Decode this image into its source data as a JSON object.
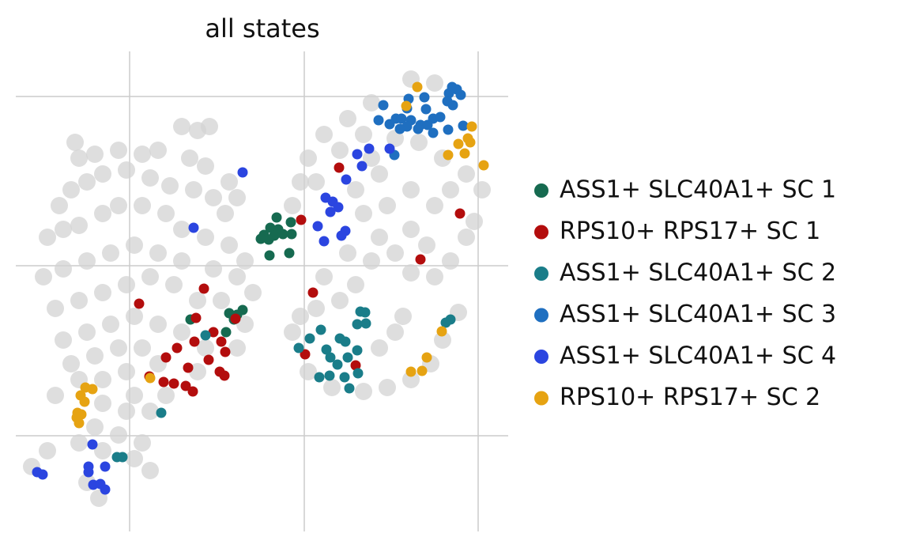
{
  "chart_data": {
    "type": "scatter",
    "title": "all states",
    "xlim": [
      2,
      64.3
    ],
    "ylim": [
      2.8,
      63.5
    ],
    "xticks": [
      16.4,
      38.5,
      60.5
    ],
    "yticks": [
      14.9,
      36.4,
      57.8
    ],
    "grid": true,
    "legend": "right",
    "background": {
      "color": "#d3d3d3",
      "x": [
        9.5,
        10,
        12,
        15,
        18,
        20,
        23,
        25,
        26.5,
        24,
        26,
        29,
        30,
        28.5,
        7.5,
        9,
        11,
        13,
        16,
        19,
        21.5,
        24.5,
        27,
        6,
        8,
        10,
        13,
        15,
        18,
        21,
        23,
        26,
        29,
        31,
        5.5,
        8,
        11,
        14,
        17,
        20,
        23,
        27,
        30,
        32,
        7,
        10,
        13,
        16,
        19,
        22,
        25,
        28,
        31,
        8,
        11,
        14,
        17,
        20,
        23,
        26,
        30,
        9,
        12,
        15,
        18,
        20,
        25,
        7,
        10,
        13,
        16,
        17,
        21,
        13,
        16,
        19,
        12,
        15,
        18,
        10,
        13,
        17,
        19,
        11,
        12.5,
        4,
        6,
        52,
        55,
        47,
        44,
        41,
        39,
        38,
        37,
        40,
        43,
        46,
        50,
        53,
        56,
        59,
        61,
        60,
        59,
        57,
        55,
        52,
        50,
        48,
        47,
        45,
        43,
        40,
        38,
        37,
        39,
        42,
        46,
        49,
        52,
        54.5,
        56,
        58,
        50,
        48,
        51,
        46,
        49,
        52,
        55,
        52,
        54,
        45,
        48,
        57,
        44,
        41,
        47
      ],
      "y": [
        52,
        50,
        50.5,
        51,
        50.5,
        51,
        54,
        53.5,
        54,
        50,
        49,
        47,
        45,
        43,
        44,
        46,
        47,
        48,
        48.5,
        47.5,
        46.5,
        46,
        45,
        40,
        41,
        41.5,
        43,
        44,
        44,
        43,
        41,
        40,
        39,
        37,
        35,
        36,
        37,
        38,
        39,
        38,
        37,
        36,
        35,
        33,
        31,
        32,
        33,
        34,
        35,
        34,
        32,
        32,
        29,
        27,
        28,
        29,
        30,
        29,
        28,
        26,
        26,
        24,
        25,
        26,
        26,
        24,
        23,
        20,
        22,
        22,
        23,
        20,
        20,
        19,
        18,
        18,
        16,
        15,
        14,
        14,
        13,
        12,
        10.5,
        9,
        7,
        11,
        13,
        60,
        59.5,
        57,
        55,
        53,
        50,
        47,
        44,
        47,
        51,
        53,
        52.5,
        52,
        50,
        48,
        46,
        42,
        40,
        37,
        35,
        35.5,
        38,
        40,
        37,
        34,
        32,
        31,
        30,
        28,
        23,
        21,
        20.5,
        21,
        22,
        24,
        27,
        30.5,
        28,
        26,
        30,
        43,
        44,
        46,
        44,
        41,
        39,
        46,
        48,
        46,
        38,
        35,
        50
      ]
    },
    "series": [
      {
        "name": "ASS1+ SLC40A1+ SC 1",
        "color": "#166a50",
        "x": [
          35,
          36.8,
          34.2,
          35.2,
          33.4,
          34.7,
          35.8,
          36.9,
          33,
          34,
          34.1,
          36.6,
          29,
          30,
          30.7,
          29.6,
          28.6,
          24.1
        ],
        "y": [
          42.5,
          41.9,
          41.2,
          41,
          40.3,
          40.2,
          40.4,
          40.4,
          39.8,
          39.7,
          37.7,
          38,
          30.4,
          30.2,
          30.8,
          29.6,
          28,
          29.6
        ]
      },
      {
        "name": "RPS10+ RPS17+ SC 1",
        "color": "#b30d0d",
        "x": [
          42.9,
          38.1,
          58.2,
          53.2,
          39.6,
          25.8,
          17.6,
          24.8,
          29.8,
          27,
          24.6,
          28,
          22.4,
          28.5,
          21,
          26.4,
          23.8,
          27.8,
          18.9,
          28.4,
          20.7,
          22,
          23.5,
          24.4,
          45,
          38.6
        ],
        "y": [
          48.8,
          42.2,
          43,
          37.2,
          33,
          33.5,
          31.6,
          29.8,
          29.7,
          28,
          26.8,
          26.8,
          26,
          25.5,
          24.8,
          24.5,
          23.5,
          23,
          22.4,
          22.5,
          21.7,
          21.5,
          21.2,
          20.5,
          23.8,
          25.2
        ]
      },
      {
        "name": "ASS1+ SLC40A1+ SC 2",
        "color": "#1a7d89",
        "x": [
          45.6,
          46.2,
          45.2,
          46.3,
          40.6,
          39.2,
          43,
          43.7,
          37.8,
          41.3,
          45.2,
          41.8,
          44,
          42.7,
          40.4,
          41.7,
          43.6,
          45.3,
          44.2,
          57,
          56.4,
          26,
          20.4,
          14.8,
          15.5
        ],
        "y": [
          30.6,
          30.5,
          29,
          29.1,
          28.3,
          27.2,
          27.2,
          26.8,
          26,
          25.8,
          25.7,
          24.8,
          24.8,
          23.9,
          22.3,
          22.5,
          22.3,
          22.8,
          20.9,
          29.6,
          29.2,
          27.6,
          17.8,
          12.2,
          12.2
        ]
      },
      {
        "name": "ASS1+ SLC40A1+ SC 3",
        "color": "#1f6fc0",
        "x": [
          57.2,
          57.8,
          56.8,
          58.3,
          48.5,
          51.7,
          53.7,
          56.6,
          57.3,
          51.5,
          53.9,
          50.1,
          47.9,
          49.3,
          50.8,
          52,
          54.8,
          55.7,
          51.5,
          53.2,
          54.1,
          50.6,
          52.9,
          54.8,
          56.7,
          58.6,
          49.9
        ],
        "y": [
          59,
          58.7,
          58.2,
          58,
          56.7,
          57.5,
          57.7,
          57.2,
          56.7,
          56.3,
          56.2,
          55,
          54.8,
          54.3,
          55,
          54.8,
          55,
          55.2,
          54,
          54.2,
          54.2,
          53.7,
          53.7,
          53.2,
          53.6,
          54.1,
          50.4
        ]
      },
      {
        "name": "ASS1+ SLC40A1+ SC 4",
        "color": "#2b45e0",
        "x": [
          30.7,
          24.5,
          45.2,
          46.7,
          49.3,
          45.8,
          43.8,
          41.2,
          42.1,
          42.8,
          41.8,
          40.2,
          43.7,
          43.2,
          41,
          11.7,
          4.7,
          5.4,
          11.2,
          11.2,
          13.3,
          11.8,
          12.7,
          13.3
        ],
        "y": [
          48.2,
          41.2,
          50.5,
          51.2,
          51.2,
          49,
          47.3,
          45,
          44.5,
          43.8,
          43.2,
          41.4,
          40.8,
          40.2,
          39.5,
          13.8,
          10.3,
          10,
          11,
          10.3,
          11,
          8.7,
          8.8,
          8.1
        ]
      },
      {
        "name": "RPS10+ RPS17+ SC 2",
        "color": "#e6a312",
        "x": [
          52.8,
          51.4,
          59.7,
          59.2,
          58,
          59.5,
          56.7,
          58.8,
          61.2,
          55.9,
          54,
          53.4,
          52,
          19,
          10.8,
          11.7,
          10.2,
          10.7,
          9.8,
          10.3,
          9.7,
          10
        ],
        "y": [
          59,
          56.6,
          54,
          52.5,
          51.8,
          52,
          50.4,
          50.6,
          49.1,
          28.1,
          24.8,
          23.1,
          23,
          22.2,
          21,
          20.8,
          20,
          19.2,
          17.8,
          17.6,
          17.2,
          16.5
        ]
      }
    ]
  }
}
